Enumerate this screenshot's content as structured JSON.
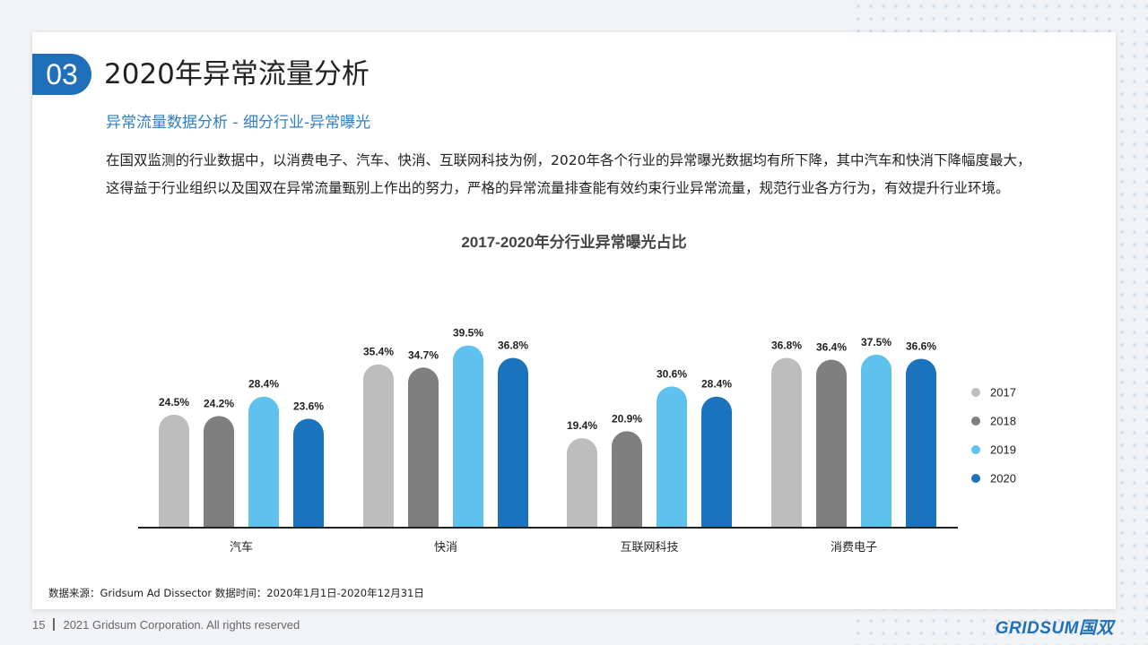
{
  "header": {
    "section_number": "03",
    "title": "2020年异常流量分析",
    "subtitle": "异常流量数据分析 - 细分行业-异常曝光"
  },
  "body": {
    "paragraph": "在国双监测的行业数据中，以消费电子、汽车、快消、互联网科技为例，2020年各个行业的异常曝光数据均有所下降，其中汽车和快消下降幅度最大，这得益于行业组织以及国双在异常流量甄别上作出的努力，严格的异常流量排查能有效约束行业异常流量，规范行业各方行为，有效提升行业环境。"
  },
  "source_note": "数据来源：Gridsum Ad Dissector 数据时间：2020年1月1日-2020年12月31日",
  "footer": {
    "page_number": "15",
    "copyright": "2021 Gridsum Corporation. All rights reserved",
    "logo_text": "GRIDSUM国双"
  },
  "chart_data": {
    "type": "bar",
    "title": "2017-2020年分行业异常曝光占比",
    "categories": [
      "汽车",
      "快消",
      "互联网科技",
      "消费电子"
    ],
    "value_suffix": "%",
    "legend_position": "right",
    "grid": false,
    "series": [
      {
        "name": "2017",
        "color": "#bdbdbd",
        "values": [
          24.5,
          35.4,
          19.4,
          36.8
        ],
        "labels": [
          "24.5%",
          "35.4%",
          "19.4%",
          "36.8%"
        ]
      },
      {
        "name": "2018",
        "color": "#7f7f7f",
        "values": [
          24.2,
          34.7,
          20.9,
          36.4
        ],
        "labels": [
          "24.2%",
          "34.7%",
          "20.9%",
          "36.4%"
        ]
      },
      {
        "name": "2019",
        "color": "#5fc1ee",
        "values": [
          28.4,
          39.5,
          30.6,
          37.5
        ],
        "labels": [
          "28.4%",
          "39.5%",
          "30.6%",
          "37.5%"
        ]
      },
      {
        "name": "2020",
        "color": "#1b73bd",
        "values": [
          23.6,
          36.8,
          28.4,
          36.6
        ],
        "labels": [
          "23.6%",
          "36.8%",
          "28.4%",
          "36.6%"
        ]
      }
    ]
  }
}
